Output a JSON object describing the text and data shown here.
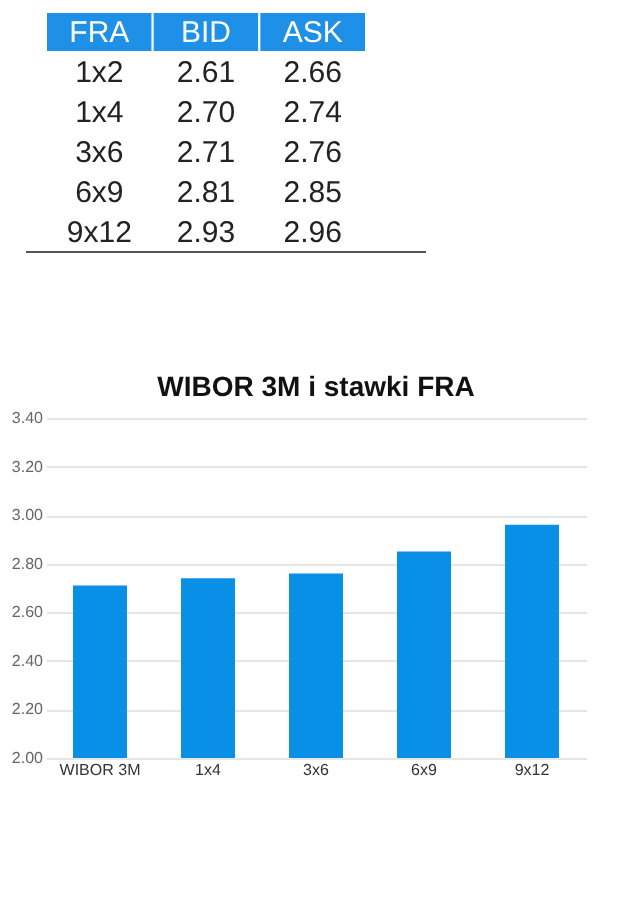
{
  "chart_data": [
    {
      "type": "other",
      "xlabel": "FRA",
      "categories": [
        "1x2",
        "1x4",
        "3x6",
        "6x9",
        "9x12"
      ],
      "series": [
        {
          "name": "BID",
          "values": [
            2.61,
            2.7,
            2.71,
            2.81,
            2.93
          ],
          "value_labels": [
            "2.61",
            "2.70",
            "2.71",
            "2.81",
            "2.93"
          ]
        },
        {
          "name": "ASK",
          "values": [
            2.66,
            2.74,
            2.76,
            2.85,
            2.96
          ],
          "value_labels": [
            "2.66",
            "2.74",
            "2.76",
            "2.85",
            "2.96"
          ]
        }
      ]
    },
    {
      "type": "bar",
      "title": "WIBOR 3M i stawki FRA",
      "categories": [
        "WIBOR 3M",
        "1x4",
        "3x6",
        "6x9",
        "9x12"
      ],
      "values": [
        2.71,
        2.74,
        2.76,
        2.85,
        2.96
      ],
      "color": "#0a8fe6",
      "ylim": [
        2.0,
        3.4
      ],
      "yticks": [
        {
          "value": 2.0,
          "label": "2.00"
        },
        {
          "value": 2.2,
          "label": "2.20"
        },
        {
          "value": 2.4,
          "label": "2.40"
        },
        {
          "value": 2.6,
          "label": "2.60"
        },
        {
          "value": 2.8,
          "label": "2.80"
        },
        {
          "value": 3.0,
          "label": "3.00"
        },
        {
          "value": 3.2,
          "label": "3.20"
        },
        {
          "value": 3.4,
          "label": "3.40"
        }
      ],
      "grid": "y",
      "legend": false
    }
  ]
}
